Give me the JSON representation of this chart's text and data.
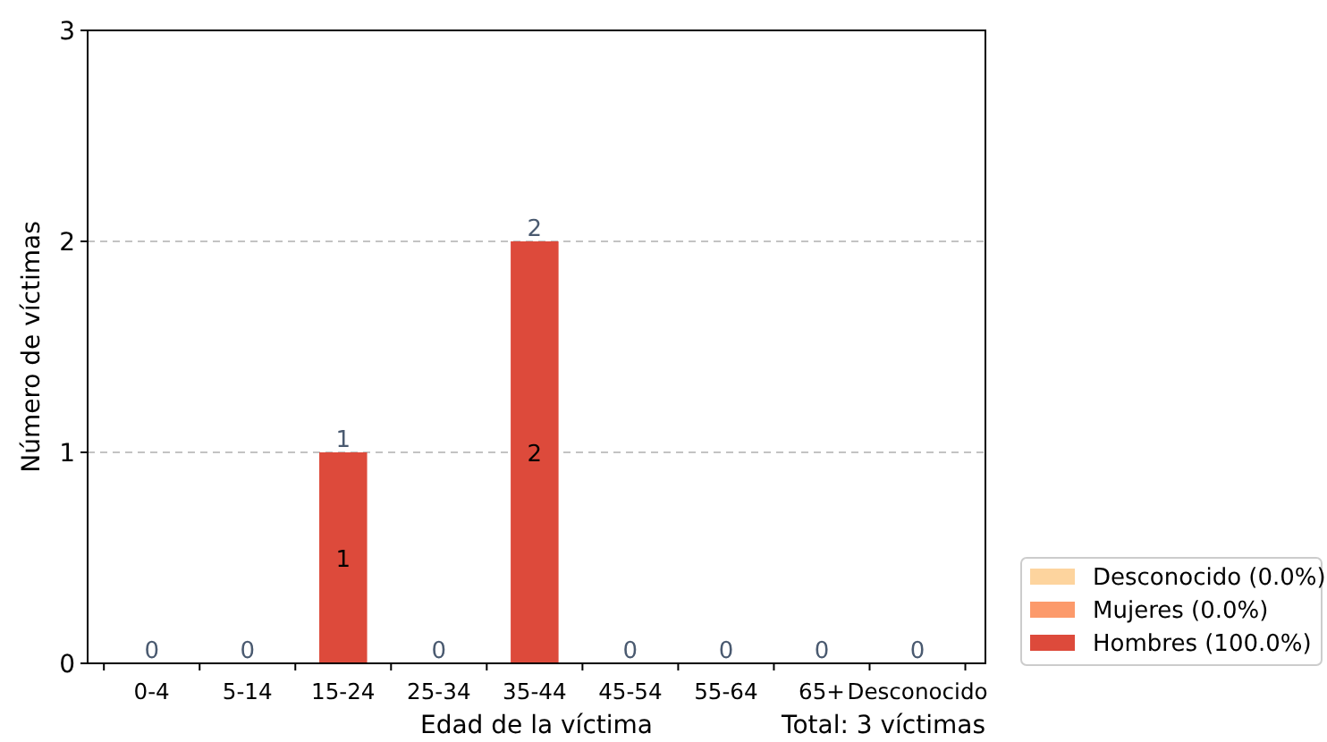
{
  "chart_data": {
    "type": "bar",
    "stacked": true,
    "xlabel": "Edad de la víctima",
    "ylabel": "Número de víctimas",
    "categories": [
      "0-4",
      "5-14",
      "15-24",
      "25-34",
      "35-44",
      "45-54",
      "55-64",
      "65+",
      "Desconocido"
    ],
    "series": [
      {
        "name": "Hombres (100.0%)",
        "color": "#dd4a3b",
        "values": [
          0,
          0,
          1,
          0,
          2,
          0,
          0,
          0,
          0
        ],
        "value_labels": [
          null,
          null,
          "1",
          null,
          "2",
          null,
          null,
          null,
          null
        ]
      },
      {
        "name": "Mujeres (0.0%)",
        "color": "#fc9a6b",
        "values": [
          0,
          0,
          0,
          0,
          0,
          0,
          0,
          0,
          0
        ]
      },
      {
        "name": "Desconocido (0.0%)",
        "color": "#fdd49e",
        "values": [
          0,
          0,
          0,
          0,
          0,
          0,
          0,
          0,
          0
        ]
      }
    ],
    "ylim": [
      0,
      3
    ],
    "yticks": [
      0,
      1,
      2,
      3
    ],
    "grid": "y",
    "line_style": "dashed",
    "legend": "bottom right",
    "totals": [
      "0",
      "0",
      "1",
      "0",
      "2",
      "0",
      "0",
      "0",
      "0"
    ],
    "annotations": [
      "Total: 3 víctimas"
    ]
  }
}
